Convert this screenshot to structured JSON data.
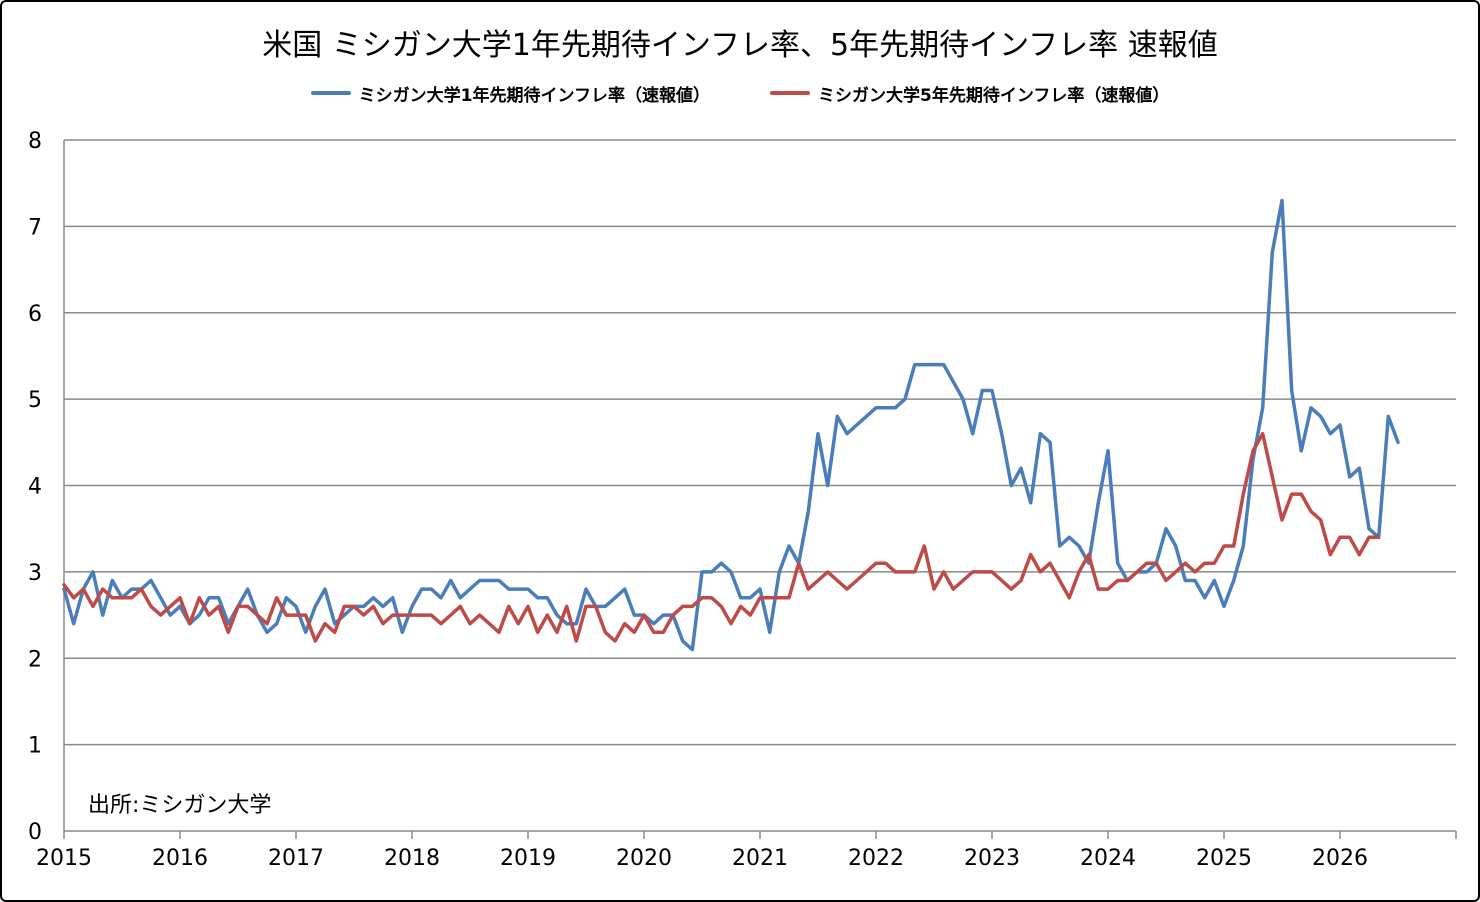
{
  "chart_data": {
    "type": "line",
    "title": "米国  ミシガン大学1年先期待インフレ率、5年先期待インフレ率 速報値",
    "xlabel": "",
    "ylabel": "",
    "ylim": [
      0,
      8
    ],
    "yticks": [
      0,
      1,
      2,
      3,
      4,
      5,
      6,
      7,
      8
    ],
    "xlim": [
      "2015-01",
      "2027-01"
    ],
    "xtick_labels": [
      "2015",
      "2016",
      "2017",
      "2018",
      "2019",
      "2020",
      "2021",
      "2022",
      "2023",
      "2024",
      "2025",
      "2026"
    ],
    "grid": "horizontal",
    "legend_position": "top",
    "start_month": "2015-01",
    "series": [
      {
        "name": "ミシガン大学1年先期待インフレ率（速報値）",
        "color": "#4A7EBB",
        "values": [
          2.8,
          2.4,
          2.8,
          3.0,
          2.5,
          2.9,
          2.7,
          2.8,
          2.8,
          2.9,
          2.7,
          2.5,
          2.6,
          2.4,
          2.5,
          2.7,
          2.7,
          2.4,
          2.6,
          2.8,
          2.5,
          2.3,
          2.4,
          2.7,
          2.6,
          2.3,
          2.6,
          2.8,
          2.4,
          2.5,
          2.6,
          2.6,
          2.7,
          2.6,
          2.7,
          2.3,
          2.6,
          2.8,
          2.8,
          2.7,
          2.9,
          2.7,
          2.8,
          2.9,
          2.9,
          2.9,
          2.8,
          2.8,
          2.8,
          2.7,
          2.7,
          2.5,
          2.4,
          2.4,
          2.8,
          2.6,
          2.6,
          2.7,
          2.8,
          2.5,
          2.5,
          2.4,
          2.5,
          2.5,
          2.2,
          2.1,
          3.0,
          3.0,
          3.1,
          3.0,
          2.7,
          2.7,
          2.8,
          2.3,
          3.0,
          3.3,
          3.1,
          3.7,
          4.6,
          4.0,
          4.8,
          4.6,
          4.7,
          4.8,
          4.9,
          4.9,
          4.9,
          5.0,
          5.4,
          5.4,
          5.4,
          5.4,
          5.2,
          5.0,
          4.6,
          5.1,
          5.1,
          4.6,
          4.0,
          4.2,
          3.8,
          4.6,
          4.5,
          3.3,
          3.4,
          3.3,
          3.1,
          3.8,
          4.4,
          3.1,
          2.9,
          3.0,
          3.0,
          3.1,
          3.5,
          3.3,
          2.9,
          2.9,
          2.7,
          2.9,
          2.6,
          2.9,
          3.3,
          4.3,
          4.9,
          6.7,
          7.3,
          5.1,
          4.4,
          4.9,
          4.8,
          4.6,
          4.7,
          4.1,
          4.2,
          3.5,
          3.4,
          4.8,
          4.5
        ]
      },
      {
        "name": "ミシガン大学5年先期待インフレ率（速報値）",
        "color": "#BE4B48",
        "values": [
          2.85,
          2.7,
          2.8,
          2.6,
          2.8,
          2.7,
          2.7,
          2.7,
          2.8,
          2.6,
          2.5,
          2.6,
          2.7,
          2.4,
          2.7,
          2.5,
          2.6,
          2.3,
          2.6,
          2.6,
          2.5,
          2.4,
          2.7,
          2.5,
          2.5,
          2.5,
          2.2,
          2.4,
          2.3,
          2.6,
          2.6,
          2.5,
          2.6,
          2.4,
          2.5,
          2.5,
          2.5,
          2.5,
          2.5,
          2.4,
          2.5,
          2.6,
          2.4,
          2.5,
          2.4,
          2.3,
          2.6,
          2.4,
          2.6,
          2.3,
          2.5,
          2.3,
          2.6,
          2.2,
          2.6,
          2.6,
          2.3,
          2.2,
          2.4,
          2.3,
          2.5,
          2.3,
          2.3,
          2.5,
          2.6,
          2.6,
          2.7,
          2.7,
          2.6,
          2.4,
          2.6,
          2.5,
          2.7,
          2.7,
          2.7,
          2.7,
          3.1,
          2.8,
          2.9,
          3.0,
          2.9,
          2.8,
          2.9,
          3.0,
          3.1,
          3.1,
          3.0,
          3.0,
          3.0,
          3.3,
          2.8,
          3.0,
          2.8,
          2.9,
          3.0,
          3.0,
          3.0,
          2.9,
          2.8,
          2.9,
          3.2,
          3.0,
          3.1,
          2.9,
          2.7,
          3.0,
          3.2,
          2.8,
          2.8,
          2.9,
          2.9,
          3.0,
          3.1,
          3.1,
          2.9,
          3.0,
          3.1,
          3.0,
          3.1,
          3.1,
          3.3,
          3.3,
          3.9,
          4.4,
          4.6,
          4.1,
          3.6,
          3.9,
          3.9,
          3.7,
          3.6,
          3.2,
          3.4,
          3.4,
          3.2,
          3.4,
          3.4
        ]
      }
    ],
    "annotation": "出所:ミシガン大学"
  }
}
